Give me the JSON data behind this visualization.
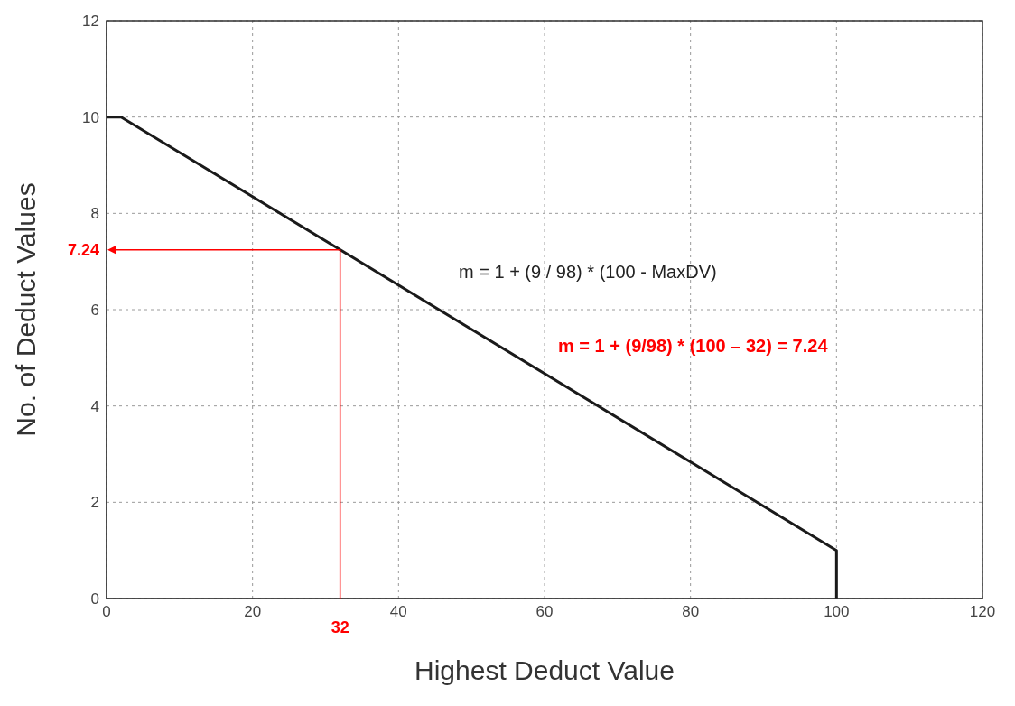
{
  "chart_data": {
    "type": "line",
    "xlabel": "Highest Deduct Value",
    "ylabel": "No. of Deduct Values",
    "series": [
      {
        "color": "#1a1a1a",
        "x": [
          0,
          2,
          100,
          100
        ],
        "values": [
          10,
          10,
          1,
          0
        ]
      }
    ],
    "xlim": [
      0,
      120
    ],
    "xticks": [
      0,
      20,
      40,
      60,
      80,
      100,
      120
    ],
    "ylim": [
      0,
      12
    ],
    "yticks": [
      0,
      2,
      4,
      6,
      8,
      10,
      12
    ],
    "grid": true,
    "marker": "none",
    "line_style": "solid",
    "ref_lines": [
      {
        "axis": "y",
        "value": 7.24,
        "label": "7.24",
        "color": "#ff0000"
      },
      {
        "axis": "x",
        "value": 32,
        "label": "32",
        "color": "#ff0000"
      }
    ],
    "annotations": [
      "m = 1 + (9 / 98) * (100 - MaxDV)",
      "m = 1 + (9/98) * (100 – 32) = 7.24"
    ]
  }
}
